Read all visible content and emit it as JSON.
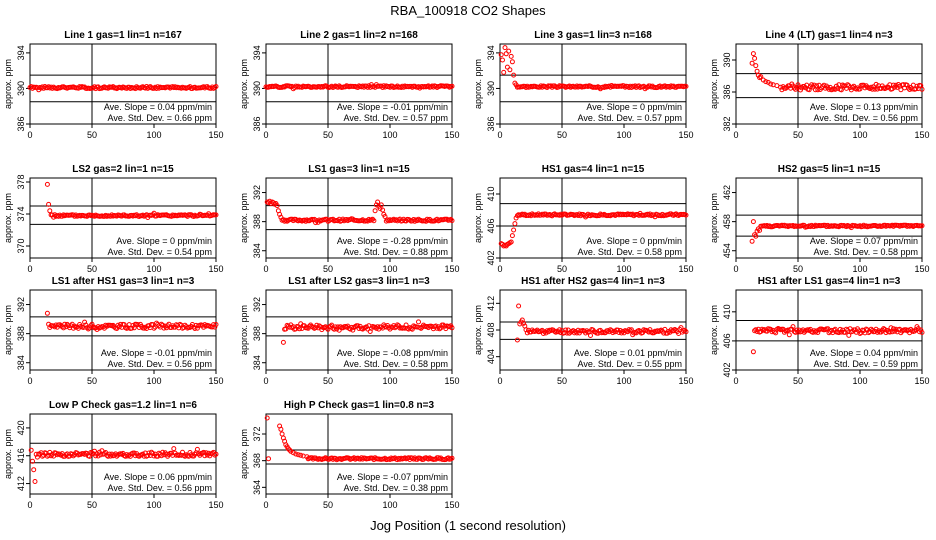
{
  "title": "RBA_100918  CO2 Shapes",
  "xlabel": "Jog Position (1 second resolution)",
  "colors": {
    "points": "#ff0000",
    "axes": "#000000"
  },
  "chart_data": [
    {
      "type": "scatter",
      "title": "Line 1 gas=1 lin=1 n=167",
      "ylabel": "approx. ppm",
      "xlim": [
        0,
        150
      ],
      "ylim": [
        386,
        395
      ],
      "xticks": [
        0,
        50,
        100,
        150
      ],
      "yticks": [
        386,
        390,
        394
      ],
      "hlines": [
        388.5,
        391.5
      ],
      "vline": 50,
      "slope": "0.04",
      "std": "0.66",
      "shape": {
        "start": 0,
        "early": [],
        "base": 390.1,
        "noise": 0.12,
        "seed": 1
      }
    },
    {
      "type": "scatter",
      "title": "Line 2 gas=1 lin=2 n=168",
      "ylabel": "approx. ppm",
      "xlim": [
        0,
        150
      ],
      "ylim": [
        386,
        395
      ],
      "xticks": [
        0,
        50,
        100,
        150
      ],
      "yticks": [
        386,
        390,
        394
      ],
      "hlines": [
        388.5,
        391.5
      ],
      "vline": 50,
      "slope": "-0.01",
      "std": "0.57",
      "shape": {
        "start": 0,
        "early": [],
        "base": 390.2,
        "noise": 0.1,
        "seed": 2
      }
    },
    {
      "type": "scatter",
      "title": "Line 3 gas=1 lin=3 n=168",
      "ylabel": "approx. ppm",
      "xlim": [
        0,
        150
      ],
      "ylim": [
        386,
        395
      ],
      "xticks": [
        0,
        50,
        100,
        150
      ],
      "yticks": [
        386,
        390,
        394
      ],
      "hlines": [
        388.5,
        391.5
      ],
      "vline": 50,
      "slope": "0",
      "std": "0.57",
      "shape": {
        "start": 0,
        "early": [
          [
            1,
            393.8
          ],
          [
            2,
            393.2
          ],
          [
            3,
            391.8
          ],
          [
            4,
            394.6
          ],
          [
            5,
            393.9
          ],
          [
            6,
            392.4
          ],
          [
            7,
            394.2
          ],
          [
            8,
            392.1
          ],
          [
            9,
            393.6
          ],
          [
            10,
            393
          ],
          [
            11,
            391.5
          ],
          [
            12,
            390.6
          ],
          [
            13,
            390.4
          ]
        ],
        "base": 390.2,
        "noise": 0.1,
        "seed": 3
      }
    },
    {
      "type": "scatter",
      "title": "Line 4 (LT) gas=1 lin=4 n=3",
      "ylabel": "approx. ppm",
      "xlim": [
        0,
        150
      ],
      "ylim": [
        382,
        392
      ],
      "xticks": [
        0,
        50,
        100,
        150
      ],
      "yticks": [
        382,
        386,
        390
      ],
      "hlines": [
        385.3,
        388.3
      ],
      "vline": 50,
      "slope": "0.13",
      "std": "0.56",
      "shape": {
        "start": 13,
        "early": [
          [
            13,
            389.6
          ],
          [
            14,
            390.8
          ],
          [
            15,
            390.2
          ],
          [
            16,
            389.3
          ],
          [
            17,
            388.6
          ],
          [
            18,
            388.1
          ],
          [
            19,
            387.8
          ],
          [
            20,
            387.9
          ],
          [
            22,
            387.5
          ],
          [
            24,
            387.3
          ],
          [
            26,
            387.2
          ],
          [
            28,
            387.0
          ],
          [
            30,
            386.9
          ],
          [
            33,
            386.8
          ],
          [
            36,
            386.6
          ]
        ],
        "base": 386.6,
        "noise": 0.35,
        "seed": 4
      }
    },
    {
      "type": "scatter",
      "title": "LS2 gas=2 lin=1 n=15",
      "ylabel": "approx. ppm",
      "xlim": [
        0,
        150
      ],
      "ylim": [
        368.5,
        378.5
      ],
      "xticks": [
        0,
        50,
        100,
        150
      ],
      "yticks": [
        370,
        374,
        378
      ],
      "hlines": [
        372.7,
        375.0
      ],
      "vline": 50,
      "slope": "0",
      "std": "0.54",
      "shape": {
        "start": 13,
        "early": [
          [
            14,
            377.7
          ],
          [
            15,
            375.2
          ],
          [
            16,
            374.4
          ]
        ],
        "base": 373.8,
        "noise": 0.12,
        "seed": 5
      }
    },
    {
      "type": "scatter",
      "title": "LS1 gas=3 lin=1 n=15",
      "ylabel": "approx. ppm",
      "xlim": [
        0,
        150
      ],
      "ylim": [
        383,
        394
      ],
      "xticks": [
        0,
        50,
        100,
        150
      ],
      "yticks": [
        384,
        388,
        392
      ],
      "hlines": [
        386.9,
        390.2
      ],
      "vline": 50,
      "slope": "-0.28",
      "std": "0.88",
      "shape": {
        "start": 0,
        "early": [
          [
            1,
            390.7
          ],
          [
            2,
            390.6
          ],
          [
            3,
            390.8
          ],
          [
            4,
            390.5
          ],
          [
            5,
            390.7
          ],
          [
            6,
            390.6
          ],
          [
            7,
            390.4
          ],
          [
            8,
            390.5
          ],
          [
            9,
            390.2
          ],
          [
            10,
            389.5
          ],
          [
            11,
            389.0
          ],
          [
            12,
            388.6
          ],
          [
            13,
            388.2
          ]
        ],
        "bump": [
          [
            88,
            389.5
          ],
          [
            89,
            390.3
          ],
          [
            90,
            390.7
          ],
          [
            91,
            390.1
          ],
          [
            92,
            389.8
          ],
          [
            93,
            390.3
          ],
          [
            94,
            389.6
          ],
          [
            95,
            389.0
          ],
          [
            96,
            388.7
          ]
        ],
        "base": 388.2,
        "noise": 0.15,
        "seed": 6
      }
    },
    {
      "type": "scatter",
      "title": "HS1 gas=4 lin=1 n=15",
      "ylabel": "approx. ppm",
      "xlim": [
        0,
        150
      ],
      "ylim": [
        402,
        412
      ],
      "xticks": [
        0,
        50,
        100,
        150
      ],
      "yticks": [
        402,
        406,
        410
      ],
      "hlines": [
        406.0,
        408.8
      ],
      "vline": 50,
      "slope": "0",
      "std": "0.58",
      "shape": {
        "start": 0,
        "early": [
          [
            1,
            403.8
          ],
          [
            2,
            403.7
          ],
          [
            3,
            403.5
          ],
          [
            4,
            403.6
          ],
          [
            5,
            403.5
          ],
          [
            6,
            403.7
          ],
          [
            7,
            403.8
          ],
          [
            8,
            403.9
          ],
          [
            9,
            404.0
          ],
          [
            10,
            404.8
          ],
          [
            11,
            405.5
          ],
          [
            12,
            406.3
          ],
          [
            13,
            407.0
          ],
          [
            14,
            407.3
          ]
        ],
        "base": 407.4,
        "noise": 0.12,
        "seed": 7
      }
    },
    {
      "type": "scatter",
      "title": "HS2 gas=5 lin=1 n=15",
      "ylabel": "approx. ppm",
      "xlim": [
        0,
        150
      ],
      "ylim": [
        453,
        464
      ],
      "xticks": [
        0,
        50,
        100,
        150
      ],
      "yticks": [
        454,
        458,
        462
      ],
      "hlines": [
        456.0,
        458.9
      ],
      "vline": 50,
      "slope": "0.07",
      "std": "0.58",
      "shape": {
        "start": 13,
        "early": [
          [
            13,
            455.3
          ],
          [
            14,
            458.0
          ],
          [
            15,
            456.2
          ],
          [
            16,
            456.0
          ],
          [
            17,
            456.7
          ],
          [
            18,
            457.0
          ],
          [
            19,
            456.8
          ]
        ],
        "base": 457.4,
        "noise": 0.12,
        "seed": 8
      }
    },
    {
      "type": "scatter",
      "title": "LS1 after HS1 gas=3 lin=1 n=3",
      "ylabel": "approx. ppm",
      "xlim": [
        0,
        150
      ],
      "ylim": [
        383,
        394
      ],
      "xticks": [
        0,
        50,
        100,
        150
      ],
      "yticks": [
        384,
        388,
        392
      ],
      "hlines": [
        387.7,
        390.3
      ],
      "vline": 50,
      "slope": "-0.01",
      "std": "0.56",
      "shape": {
        "start": 13,
        "early": [
          [
            14,
            390.8
          ],
          [
            15,
            389.3
          ]
        ],
        "base": 389.0,
        "noise": 0.3,
        "seed": 9
      }
    },
    {
      "type": "scatter",
      "title": "LS1 after LS2 gas=3 lin=1 n=3",
      "ylabel": "approx. ppm",
      "xlim": [
        0,
        150
      ],
      "ylim": [
        383,
        394
      ],
      "xticks": [
        0,
        50,
        100,
        150
      ],
      "yticks": [
        384,
        388,
        392
      ],
      "hlines": [
        387.7,
        390.3
      ],
      "vline": 50,
      "slope": "-0.08",
      "std": "0.58",
      "shape": {
        "start": 13,
        "early": [
          [
            14,
            386.8
          ],
          [
            15,
            388.6
          ]
        ],
        "base": 388.9,
        "noise": 0.3,
        "seed": 10
      }
    },
    {
      "type": "scatter",
      "title": "HS1 after HS2 gas=4 lin=1 n=3",
      "ylabel": "approx. ppm",
      "xlim": [
        0,
        150
      ],
      "ylim": [
        402,
        414
      ],
      "xticks": [
        0,
        50,
        100,
        150
      ],
      "yticks": [
        404,
        408,
        412
      ],
      "hlines": [
        406.6,
        409.2
      ],
      "vline": 50,
      "slope": "0.01",
      "std": "0.55",
      "shape": {
        "start": 13,
        "early": [
          [
            14,
            406.5
          ],
          [
            15,
            411.6
          ],
          [
            16,
            408.9
          ],
          [
            17,
            409.2
          ],
          [
            18,
            409.5
          ],
          [
            19,
            409.0
          ],
          [
            20,
            408.6
          ]
        ],
        "base": 407.8,
        "noise": 0.3,
        "seed": 11
      }
    },
    {
      "type": "scatter",
      "title": "HS1 after LS1 gas=4 lin=1 n=3",
      "ylabel": "approx. ppm",
      "xlim": [
        0,
        150
      ],
      "ylim": [
        402,
        413
      ],
      "xticks": [
        0,
        50,
        100,
        150
      ],
      "yticks": [
        402,
        406,
        410
      ],
      "hlines": [
        406.0,
        408.8
      ],
      "vline": 50,
      "slope": "0.04",
      "std": "0.59",
      "shape": {
        "start": 13,
        "early": [
          [
            14,
            404.5
          ],
          [
            15,
            407.4
          ]
        ],
        "base": 407.4,
        "noise": 0.3,
        "seed": 12
      }
    },
    {
      "type": "scatter",
      "title": "Low P Check gas=1.2 lin=1 n=6",
      "ylabel": "approx. ppm",
      "xlim": [
        0,
        150
      ],
      "ylim": [
        410.5,
        422
      ],
      "xticks": [
        0,
        50,
        100,
        150
      ],
      "yticks": [
        412,
        416,
        420
      ],
      "hlines": [
        415.0,
        417.8
      ],
      "vline": 50,
      "slope": "0.06",
      "std": "0.56",
      "shape": {
        "start": 0,
        "early": [
          [
            1,
            416.8
          ],
          [
            2,
            415.2
          ],
          [
            3,
            414.0
          ],
          [
            4,
            412.3
          ],
          [
            5,
            416.2
          ],
          [
            6,
            415.8
          ]
        ],
        "base": 416.2,
        "noise": 0.3,
        "seed": 13
      }
    },
    {
      "type": "scatter",
      "title": "High P Check gas=1 lin=0.8 n=3",
      "ylabel": "approx. ppm",
      "xlim": [
        0,
        150
      ],
      "ylim": [
        363,
        375
      ],
      "xticks": [
        0,
        50,
        100,
        150
      ],
      "yticks": [
        364,
        368,
        372
      ],
      "hlines": [
        367.5,
        369.6
      ],
      "vline": 50,
      "slope": "-0.07",
      "std": "0.38",
      "shape": {
        "start": 0,
        "early": [
          [
            1,
            374.4
          ],
          [
            2,
            368.3
          ],
          [
            11,
            373.2
          ],
          [
            12,
            372.7
          ],
          [
            13,
            372.0
          ],
          [
            14,
            371.4
          ],
          [
            15,
            370.9
          ],
          [
            16,
            370.4
          ],
          [
            17,
            370.1
          ],
          [
            18,
            369.8
          ],
          [
            19,
            369.6
          ],
          [
            20,
            369.4
          ],
          [
            22,
            369.2
          ],
          [
            24,
            369.0
          ],
          [
            26,
            368.9
          ],
          [
            28,
            368.8
          ],
          [
            30,
            368.7
          ],
          [
            33,
            368.6
          ]
        ],
        "base": 368.3,
        "noise": 0.15,
        "seed": 14
      }
    }
  ]
}
